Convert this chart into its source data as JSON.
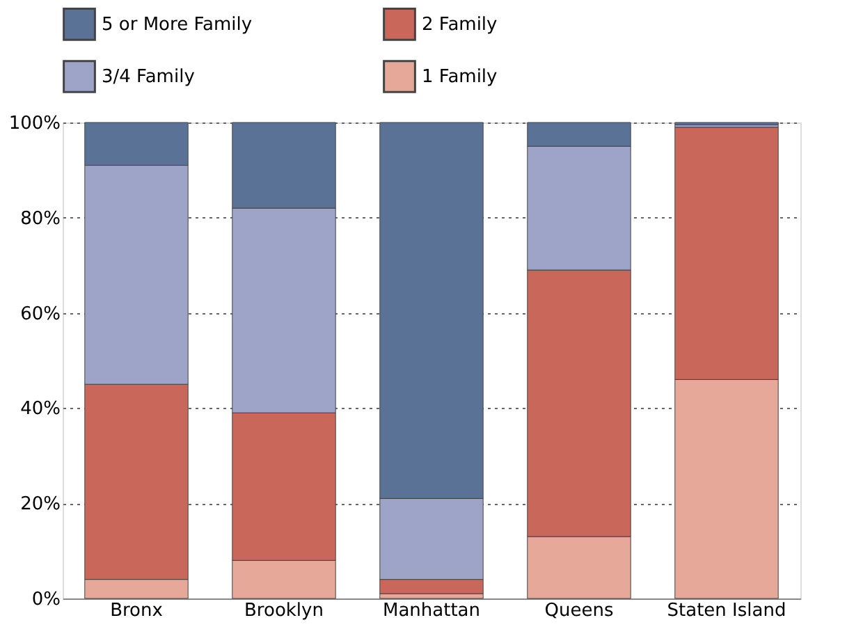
{
  "chart_data": {
    "type": "bar",
    "stacked": true,
    "categories": [
      "Bronx",
      "Brooklyn",
      "Manhattan",
      "Queens",
      "Staten Island"
    ],
    "series": [
      {
        "name": "1 Family",
        "color": "#e6a898",
        "values": [
          4,
          8,
          1,
          13,
          46
        ]
      },
      {
        "name": "2 Family",
        "color": "#c8675a",
        "values": [
          41,
          31,
          3,
          56,
          53
        ]
      },
      {
        "name": "3/4 Family",
        "color": "#9ea3c8",
        "values": [
          46,
          43,
          17,
          26,
          0.5
        ]
      },
      {
        "name": "5 or More Family",
        "color": "#5b7297",
        "values": [
          9,
          18,
          79,
          5,
          0.5
        ]
      }
    ],
    "ylim": [
      0,
      100
    ],
    "yticks": [
      {
        "value": 0,
        "label": "0%"
      },
      {
        "value": 20,
        "label": "20%"
      },
      {
        "value": 40,
        "label": "40%"
      },
      {
        "value": 60,
        "label": "60%"
      },
      {
        "value": 80,
        "label": "80%"
      },
      {
        "value": 100,
        "label": "100%"
      }
    ],
    "grid": "y",
    "legend": "top"
  }
}
